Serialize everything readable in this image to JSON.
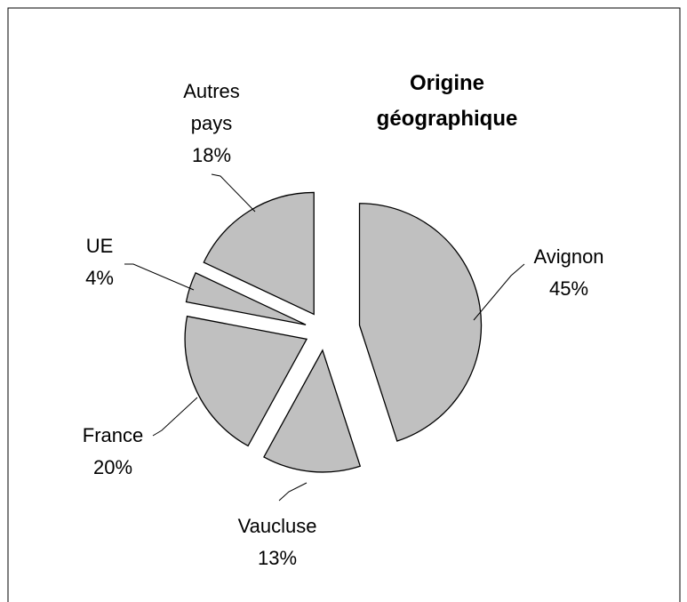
{
  "chart_data": {
    "type": "pie",
    "title": "Origine géographique",
    "categories": [
      "Avignon",
      "Vaucluse",
      "France",
      "UE",
      "Autres pays"
    ],
    "values": [
      45,
      13,
      20,
      4,
      18
    ],
    "value_labels": [
      "45%",
      "13%",
      "20%",
      "4%",
      "18%"
    ],
    "color": "#c0c0c0"
  }
}
